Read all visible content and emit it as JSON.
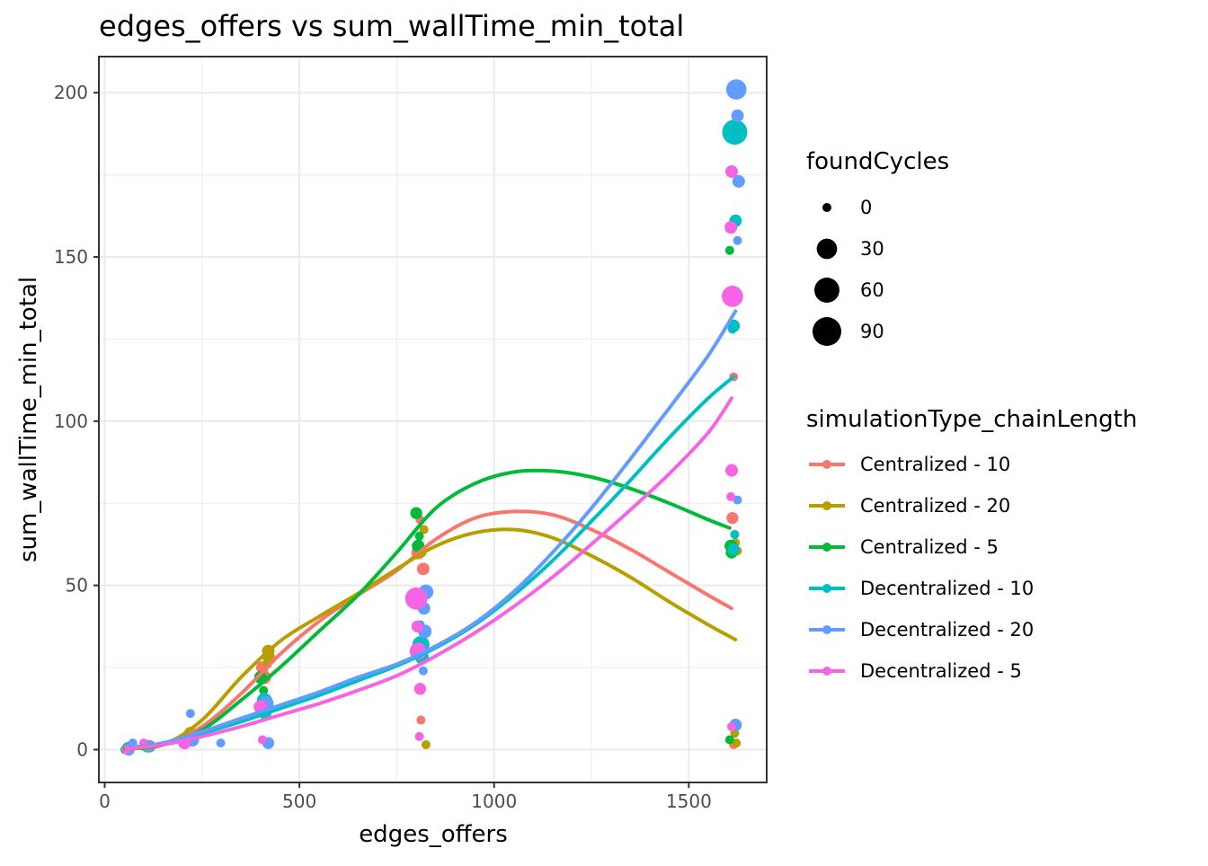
{
  "chart_data": {
    "type": "scatter",
    "title": "edges_offers  vs  sum_wallTime_min_total",
    "xlabel": "edges_offers",
    "ylabel": "sum_wallTime_min_total",
    "xlim": [
      -15,
      1700
    ],
    "ylim": [
      -10,
      211
    ],
    "xticks": [
      0,
      500,
      1000,
      1500
    ],
    "yticks": [
      0,
      50,
      100,
      150,
      200
    ],
    "grid": true,
    "size_legend": {
      "title": "foundCycles",
      "entries": [
        {
          "label": "0",
          "value": 0
        },
        {
          "label": "30",
          "value": 30
        },
        {
          "label": "60",
          "value": 60
        },
        {
          "label": "90",
          "value": 90
        }
      ]
    },
    "color_legend": {
      "title": "simulationType_chainLength",
      "placement": "right"
    },
    "series": [
      {
        "name": "Centralized - 10",
        "color": "#F8766D",
        "points": [
          [
            55,
            0,
            0
          ],
          [
            65,
            0.3,
            0
          ],
          [
            105,
            1,
            0
          ],
          [
            210,
            3,
            2
          ],
          [
            405,
            25,
            3
          ],
          [
            410,
            22,
            5
          ],
          [
            415,
            15,
            2
          ],
          [
            805,
            60,
            5
          ],
          [
            810,
            70,
            0
          ],
          [
            812,
            9,
            0
          ],
          [
            818,
            55,
            3
          ],
          [
            1615,
            113.5,
            0
          ],
          [
            1612,
            70.5,
            2
          ],
          [
            1615,
            1.5,
            0
          ],
          [
            1610,
            62,
            2
          ]
        ],
        "curve": [
          [
            55,
            0.3
          ],
          [
            150,
            1.5
          ],
          [
            250,
            7
          ],
          [
            350,
            17
          ],
          [
            450,
            29
          ],
          [
            550,
            39
          ],
          [
            650,
            47
          ],
          [
            750,
            54.5
          ],
          [
            850,
            64
          ],
          [
            950,
            70.5
          ],
          [
            1050,
            72.5
          ],
          [
            1150,
            71.5
          ],
          [
            1250,
            67
          ],
          [
            1350,
            61
          ],
          [
            1450,
            54
          ],
          [
            1550,
            47
          ],
          [
            1610,
            43
          ]
        ]
      },
      {
        "name": "Centralized - 20",
        "color": "#B79F00",
        "points": [
          [
            58,
            0,
            0
          ],
          [
            110,
            1,
            0
          ],
          [
            220,
            5,
            3
          ],
          [
            420,
            30,
            3
          ],
          [
            422,
            28,
            3
          ],
          [
            418,
            26,
            0
          ],
          [
            820,
            67,
            0
          ],
          [
            825,
            1.5,
            0
          ],
          [
            815,
            60,
            0
          ],
          [
            1620,
            63,
            0
          ],
          [
            1625,
            60.5,
            0
          ],
          [
            1622,
            2,
            0
          ],
          [
            1618,
            5,
            0
          ]
        ],
        "curve": [
          [
            58,
            0.3
          ],
          [
            150,
            1.5
          ],
          [
            250,
            9
          ],
          [
            350,
            22
          ],
          [
            450,
            33
          ],
          [
            550,
            40.5
          ],
          [
            650,
            47.5
          ],
          [
            750,
            55
          ],
          [
            850,
            62
          ],
          [
            950,
            66
          ],
          [
            1050,
            67
          ],
          [
            1150,
            64.5
          ],
          [
            1250,
            59
          ],
          [
            1350,
            52.5
          ],
          [
            1450,
            45
          ],
          [
            1550,
            38
          ],
          [
            1620,
            33.5
          ]
        ]
      },
      {
        "name": "Centralized - 5",
        "color": "#00BA38",
        "points": [
          [
            52,
            0,
            0
          ],
          [
            100,
            1,
            0
          ],
          [
            200,
            3,
            0
          ],
          [
            400,
            22,
            3
          ],
          [
            405,
            14,
            2
          ],
          [
            408,
            18,
            0
          ],
          [
            800,
            72,
            2
          ],
          [
            805,
            62,
            3
          ],
          [
            808,
            65,
            0
          ],
          [
            1605,
            152,
            0
          ],
          [
            1608,
            62,
            3
          ],
          [
            1610,
            60,
            2
          ],
          [
            1605,
            3,
            0
          ]
        ],
        "curve": [
          [
            52,
            0.3
          ],
          [
            150,
            1.5
          ],
          [
            250,
            6
          ],
          [
            350,
            15
          ],
          [
            450,
            25
          ],
          [
            550,
            36
          ],
          [
            650,
            47
          ],
          [
            750,
            60
          ],
          [
            850,
            73.5
          ],
          [
            950,
            81
          ],
          [
            1050,
            84.5
          ],
          [
            1150,
            84.8
          ],
          [
            1250,
            83
          ],
          [
            1350,
            79.5
          ],
          [
            1450,
            75
          ],
          [
            1550,
            70
          ],
          [
            1605,
            67.5
          ]
        ]
      },
      {
        "name": "Decentralized - 10",
        "color": "#00BFC4",
        "points": [
          [
            60,
            0.5,
            2
          ],
          [
            70,
            1,
            0
          ],
          [
            110,
            1,
            3
          ],
          [
            215,
            3,
            0
          ],
          [
            210,
            2.5,
            0
          ],
          [
            410,
            15,
            8
          ],
          [
            412,
            11,
            3
          ],
          [
            808,
            45,
            5
          ],
          [
            812,
            32,
            15
          ],
          [
            815,
            28,
            5
          ],
          [
            810,
            38,
            0
          ],
          [
            1618,
            188,
            60
          ],
          [
            1620,
            161,
            3
          ],
          [
            1615,
            129,
            3
          ],
          [
            1612,
            128,
            0
          ],
          [
            1618,
            65.5,
            0
          ],
          [
            1615,
            61,
            2
          ]
        ],
        "curve": [
          [
            60,
            0.5
          ],
          [
            150,
            2
          ],
          [
            250,
            5
          ],
          [
            350,
            8.5
          ],
          [
            450,
            12.5
          ],
          [
            550,
            16.5
          ],
          [
            650,
            21
          ],
          [
            750,
            25.5
          ],
          [
            850,
            31
          ],
          [
            950,
            38
          ],
          [
            1050,
            47
          ],
          [
            1150,
            57.5
          ],
          [
            1250,
            69.5
          ],
          [
            1350,
            82
          ],
          [
            1450,
            95
          ],
          [
            1550,
            107
          ],
          [
            1615,
            113.5
          ]
        ]
      },
      {
        "name": "Decentralized - 20",
        "color": "#619CFF",
        "points": [
          [
            62,
            0,
            2
          ],
          [
            72,
            2,
            0
          ],
          [
            115,
            1,
            3
          ],
          [
            220,
            11,
            0
          ],
          [
            225,
            3,
            5
          ],
          [
            415,
            14,
            8
          ],
          [
            420,
            2,
            2
          ],
          [
            298,
            2,
            0
          ],
          [
            825,
            48,
            8
          ],
          [
            822,
            36,
            5
          ],
          [
            818,
            24,
            0
          ],
          [
            820,
            43,
            3
          ],
          [
            1622,
            201,
            30
          ],
          [
            1625,
            193,
            3
          ],
          [
            1628,
            173,
            3
          ],
          [
            1625,
            155,
            0
          ],
          [
            1625,
            76,
            0
          ],
          [
            1620,
            7.5,
            3
          ]
        ],
        "curve": [
          [
            62,
            0.5
          ],
          [
            150,
            2
          ],
          [
            250,
            5.5
          ],
          [
            350,
            9.5
          ],
          [
            450,
            13.5
          ],
          [
            550,
            17.5
          ],
          [
            650,
            22
          ],
          [
            750,
            26
          ],
          [
            850,
            31.5
          ],
          [
            950,
            38.5
          ],
          [
            1050,
            48
          ],
          [
            1150,
            60
          ],
          [
            1250,
            73.5
          ],
          [
            1350,
            88.5
          ],
          [
            1450,
            104
          ],
          [
            1550,
            120
          ],
          [
            1620,
            133.5
          ]
        ]
      },
      {
        "name": "Decentralized - 5",
        "color": "#F564E3",
        "points": [
          [
            55,
            0,
            0
          ],
          [
            100,
            2,
            0
          ],
          [
            205,
            2,
            3
          ],
          [
            400,
            13,
            5
          ],
          [
            405,
            3,
            0
          ],
          [
            800,
            46,
            40
          ],
          [
            805,
            30,
            15
          ],
          [
            810,
            18.5,
            2
          ],
          [
            803,
            37.5,
            2
          ],
          [
            808,
            4,
            0
          ],
          [
            1610,
            176,
            3
          ],
          [
            1608,
            159,
            3
          ],
          [
            1612,
            138,
            35
          ],
          [
            1610,
            85,
            3
          ],
          [
            1608,
            77,
            0
          ],
          [
            1610,
            7,
            0
          ]
        ],
        "curve": [
          [
            55,
            0.3
          ],
          [
            150,
            1.5
          ],
          [
            250,
            4
          ],
          [
            350,
            7
          ],
          [
            450,
            10.5
          ],
          [
            550,
            14
          ],
          [
            650,
            18
          ],
          [
            750,
            22.5
          ],
          [
            850,
            28.5
          ],
          [
            950,
            35.5
          ],
          [
            1050,
            43.5
          ],
          [
            1150,
            52.5
          ],
          [
            1250,
            62.5
          ],
          [
            1350,
            73
          ],
          [
            1450,
            84
          ],
          [
            1550,
            96.5
          ],
          [
            1610,
            107
          ]
        ]
      }
    ]
  }
}
